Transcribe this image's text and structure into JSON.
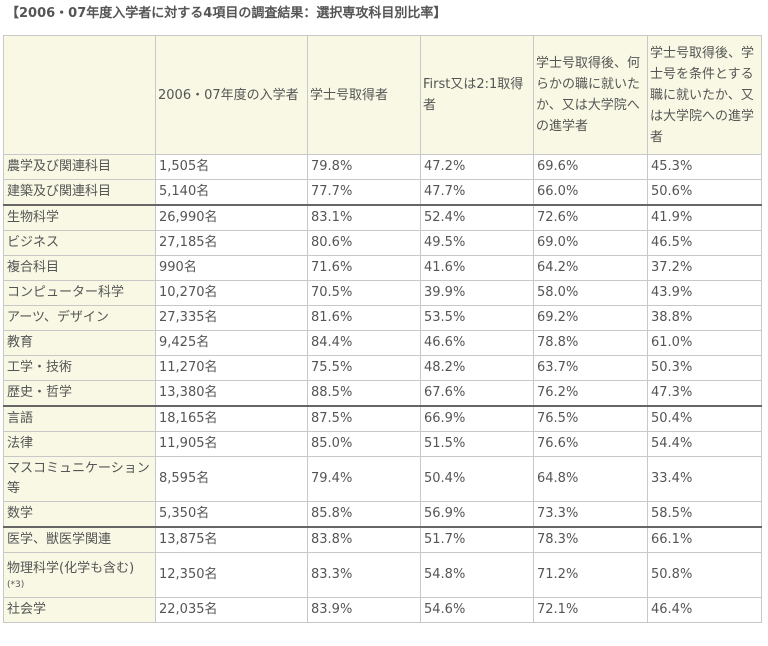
{
  "title": "【2006・07年度入学者に対する4項目の調査結果：選択専攻科目別比率】",
  "columns": [
    "",
    "2006・07年度の入学者",
    "学士号取得者",
    "First又は2:1取得者",
    "学士号取得後、何らかの職に就いたか、又は大学院への進学者",
    "学士号取得後、学士号を条件とする職に就いたか、又は大学院への進学者"
  ],
  "rows": [
    {
      "subject": "農学及び関連科目",
      "note": "",
      "students": "1,505名",
      "degree": "79.8%",
      "first": "47.2%",
      "any_job": "69.6%",
      "grad_job": "45.3%"
    },
    {
      "subject": "建築及び関連科目",
      "note": "",
      "students": "5,140名",
      "degree": "77.7%",
      "first": "47.7%",
      "any_job": "66.0%",
      "grad_job": "50.6%"
    },
    {
      "subject": "生物科学",
      "note": "",
      "students": "26,990名",
      "degree": "83.1%",
      "first": "52.4%",
      "any_job": "72.6%",
      "grad_job": "41.9%"
    },
    {
      "subject": "ビジネス",
      "note": "",
      "students": "27,185名",
      "degree": "80.6%",
      "first": "49.5%",
      "any_job": "69.0%",
      "grad_job": "46.5%"
    },
    {
      "subject": "複合科目",
      "note": "",
      "students": "990名",
      "degree": "71.6%",
      "first": "41.6%",
      "any_job": "64.2%",
      "grad_job": "37.2%"
    },
    {
      "subject": "コンピューター科学",
      "note": "",
      "students": "10,270名",
      "degree": "70.5%",
      "first": "39.9%",
      "any_job": "58.0%",
      "grad_job": "43.9%"
    },
    {
      "subject": "アーツ、デザイン",
      "note": "",
      "students": "27,335名",
      "degree": "81.6%",
      "first": "53.5%",
      "any_job": "69.2%",
      "grad_job": "38.8%"
    },
    {
      "subject": "教育",
      "note": "",
      "students": "9,425名",
      "degree": "84.4%",
      "first": "46.6%",
      "any_job": "78.8%",
      "grad_job": "61.0%"
    },
    {
      "subject": "工学・技術",
      "note": "",
      "students": "11,270名",
      "degree": "75.5%",
      "first": "48.2%",
      "any_job": "63.7%",
      "grad_job": "50.3%"
    },
    {
      "subject": "歴史・哲学",
      "note": "",
      "students": "13,380名",
      "degree": "88.5%",
      "first": "67.6%",
      "any_job": "76.2%",
      "grad_job": "47.3%"
    },
    {
      "subject": "言語",
      "note": "",
      "students": "18,165名",
      "degree": "87.5%",
      "first": "66.9%",
      "any_job": "76.5%",
      "grad_job": "50.4%"
    },
    {
      "subject": "法律",
      "note": "",
      "students": "11,905名",
      "degree": "85.0%",
      "first": "51.5%",
      "any_job": "76.6%",
      "grad_job": "54.4%"
    },
    {
      "subject": "マスコミュニケーション等",
      "note": "",
      "students": "8,595名",
      "degree": "79.4%",
      "first": "50.4%",
      "any_job": "64.8%",
      "grad_job": "33.4%"
    },
    {
      "subject": "数学",
      "note": "",
      "students": "5,350名",
      "degree": "85.8%",
      "first": "56.9%",
      "any_job": "73.3%",
      "grad_job": "58.5%"
    },
    {
      "subject": "医学、獣医学関連",
      "note": "",
      "students": "13,875名",
      "degree": "83.8%",
      "first": "51.7%",
      "any_job": "78.3%",
      "grad_job": "66.1%"
    },
    {
      "subject": "物理科学(化学も含む)",
      "note": "(*3)",
      "students": "12,350名",
      "degree": "83.3%",
      "first": "54.8%",
      "any_job": "71.2%",
      "grad_job": "50.8%"
    },
    {
      "subject": "社会学",
      "note": "",
      "students": "22,035名",
      "degree": "83.9%",
      "first": "54.6%",
      "any_job": "72.1%",
      "grad_job": "46.4%"
    }
  ]
}
